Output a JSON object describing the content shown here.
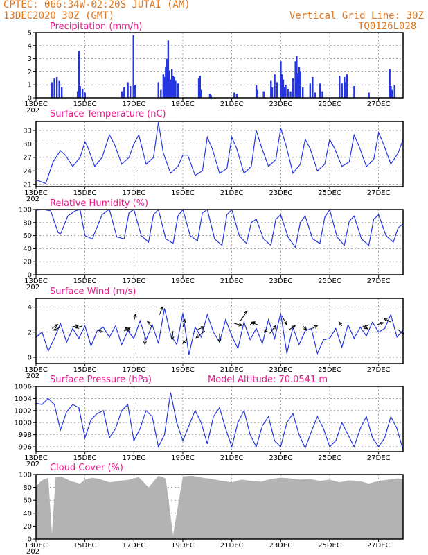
{
  "header": {
    "left_line1": "CPTEC:    066:34W-02:20S   JUTAI (AM)",
    "left_line2": "13DEC2020 30Z (GMT)",
    "right_line1": "Vertical Grid Line: 30Z",
    "right_line2": "TQ0126L028"
  },
  "colors": {
    "header": "#e0761c",
    "panel_title": "#e8178a",
    "series": "#2535e0",
    "bars": "#2535e0",
    "cloud": "#b3b3b3",
    "arrows": "#000000"
  },
  "x_axis": {
    "unit": "days since 13DEC 00Z",
    "range": [
      0,
      15
    ],
    "ticks": [
      "13DEC",
      "15DEC",
      "17DEC",
      "19DEC",
      "21DEC",
      "23DEC",
      "25DEC",
      "27DEC"
    ],
    "tick_days": [
      0,
      2,
      4,
      6,
      8,
      10,
      12,
      14
    ],
    "year_fragment": "202"
  },
  "chart_data": [
    {
      "id": "precip",
      "type": "bar",
      "title": "Precipitation (mm/h)",
      "ylim": [
        0,
        5
      ],
      "yticks": [
        0,
        1,
        2,
        3,
        4,
        5
      ],
      "x": [
        0.65,
        0.75,
        0.85,
        0.95,
        1.05,
        1.7,
        1.75,
        1.8,
        1.9,
        2.0,
        3.5,
        3.6,
        3.75,
        3.85,
        3.98,
        4.05,
        5.0,
        5.1,
        5.2,
        5.25,
        5.3,
        5.35,
        5.4,
        5.45,
        5.5,
        5.55,
        5.6,
        5.65,
        5.7,
        5.8,
        6.65,
        6.7,
        6.75,
        7.1,
        7.15,
        8.1,
        8.2,
        9.0,
        9.05,
        9.3,
        9.6,
        9.65,
        9.75,
        9.85,
        10.0,
        10.05,
        10.1,
        10.15,
        10.2,
        10.3,
        10.4,
        10.5,
        10.6,
        10.65,
        10.7,
        10.75,
        10.8,
        10.9,
        11.2,
        11.3,
        11.4,
        11.6,
        11.7,
        12.4,
        12.5,
        12.6,
        12.65,
        12.7,
        13.0,
        13.6,
        14.45,
        14.5,
        14.55,
        14.65
      ],
      "values": [
        1.2,
        1.5,
        1.6,
        1.3,
        0.8,
        0.5,
        3.6,
        0.9,
        0.7,
        0.4,
        0.5,
        0.8,
        1.2,
        0.9,
        4.8,
        1.0,
        1.2,
        0.6,
        1.8,
        1.6,
        2.4,
        3.0,
        4.4,
        2.1,
        1.4,
        2.2,
        1.7,
        1.6,
        1.3,
        1.1,
        1.5,
        1.7,
        0.6,
        0.3,
        0.2,
        0.4,
        0.3,
        1.0,
        0.6,
        0.5,
        1.3,
        0.8,
        1.8,
        1.2,
        2.8,
        1.8,
        1.4,
        0.8,
        1.0,
        0.7,
        0.5,
        1.5,
        2.8,
        3.2,
        1.9,
        2.4,
        2.0,
        0.8,
        1.1,
        1.6,
        0.4,
        1.1,
        0.5,
        1.7,
        1.1,
        1.6,
        1.2,
        1.8,
        0.9,
        0.4,
        2.2,
        0.9,
        0.6,
        1.0
      ]
    },
    {
      "id": "temp",
      "type": "line",
      "title": "Surface Temperature (nC)",
      "ylim": [
        20.5,
        35
      ],
      "yticks": [
        21,
        24,
        27,
        30,
        33
      ],
      "x": [
        0,
        0.4,
        0.7,
        1.0,
        1.2,
        1.5,
        1.8,
        2.0,
        2.1,
        2.4,
        2.7,
        3.0,
        3.2,
        3.5,
        3.8,
        4.0,
        4.2,
        4.5,
        4.8,
        5.0,
        5.2,
        5.5,
        5.8,
        6.0,
        6.2,
        6.5,
        6.8,
        7.0,
        7.2,
        7.5,
        7.8,
        8.0,
        8.2,
        8.5,
        8.8,
        9.0,
        9.2,
        9.5,
        9.8,
        10.0,
        10.2,
        10.5,
        10.8,
        11.0,
        11.2,
        11.5,
        11.8,
        12.0,
        12.2,
        12.5,
        12.8,
        13.0,
        13.2,
        13.5,
        13.8,
        14.0,
        14.2,
        14.5,
        14.8,
        15.0
      ],
      "values": [
        22,
        21.2,
        26,
        28.5,
        27.5,
        25,
        27,
        30.5,
        29.5,
        25,
        27,
        32,
        30,
        25.5,
        27,
        30,
        32,
        25.5,
        27,
        34.8,
        28,
        23.5,
        25,
        27.5,
        27.5,
        23,
        24,
        31.5,
        29,
        23.5,
        24.5,
        31.5,
        29,
        23.5,
        25,
        33,
        29.5,
        25,
        26.5,
        33.5,
        30,
        23.5,
        25.5,
        31,
        29,
        24,
        25.5,
        31,
        29,
        25,
        26,
        32,
        29.5,
        25,
        26.5,
        32.5,
        30,
        25.5,
        28,
        31
      ]
    },
    {
      "id": "rh",
      "type": "line",
      "title": "Relative Humidity (%)",
      "ylim": [
        0,
        100
      ],
      "yticks": [
        0,
        20,
        40,
        60,
        80,
        100
      ],
      "x": [
        0,
        0.3,
        0.6,
        0.9,
        1.0,
        1.3,
        1.6,
        1.8,
        2.0,
        2.3,
        2.7,
        2.9,
        3.0,
        3.3,
        3.6,
        3.8,
        4.0,
        4.3,
        4.6,
        4.8,
        5.0,
        5.3,
        5.6,
        5.8,
        6.0,
        6.3,
        6.6,
        6.8,
        7.0,
        7.3,
        7.6,
        7.8,
        8.0,
        8.3,
        8.6,
        8.8,
        9.0,
        9.3,
        9.6,
        9.8,
        10.0,
        10.3,
        10.6,
        10.8,
        11.0,
        11.3,
        11.6,
        11.8,
        12.0,
        12.3,
        12.6,
        12.8,
        13.0,
        13.3,
        13.6,
        13.8,
        14.0,
        14.3,
        14.6,
        14.8,
        15.0
      ],
      "values": [
        99,
        100,
        98,
        65,
        62,
        90,
        98,
        100,
        60,
        55,
        92,
        98,
        100,
        58,
        55,
        95,
        100,
        60,
        50,
        92,
        100,
        55,
        48,
        90,
        100,
        60,
        52,
        95,
        100,
        55,
        45,
        92,
        100,
        60,
        48,
        80,
        85,
        55,
        45,
        85,
        92,
        58,
        42,
        80,
        90,
        55,
        48,
        88,
        100,
        58,
        45,
        82,
        90,
        55,
        45,
        85,
        92,
        60,
        50,
        72,
        78
      ]
    },
    {
      "id": "wind",
      "type": "line",
      "title": "Surface Wind (m/s)",
      "ylim": [
        -0.5,
        4.7
      ],
      "yticks": [
        0,
        2,
        4
      ],
      "x": [
        0,
        0.25,
        0.5,
        0.75,
        1.0,
        1.25,
        1.5,
        1.75,
        2.0,
        2.25,
        2.5,
        2.75,
        3.0,
        3.25,
        3.5,
        3.75,
        4.0,
        4.25,
        4.5,
        4.75,
        5.0,
        5.25,
        5.5,
        5.75,
        6.0,
        6.25,
        6.5,
        6.75,
        7.0,
        7.25,
        7.5,
        7.75,
        8.0,
        8.25,
        8.5,
        8.75,
        9.0,
        9.25,
        9.5,
        9.75,
        10.0,
        10.25,
        10.5,
        10.75,
        11.0,
        11.25,
        11.5,
        11.75,
        12.0,
        12.25,
        12.5,
        12.75,
        13.0,
        13.25,
        13.5,
        13.75,
        14.0,
        14.25,
        14.5,
        14.75,
        15.0
      ],
      "values": [
        1.6,
        2.0,
        0.5,
        1.5,
        2.7,
        1.2,
        2.3,
        1.5,
        2.5,
        0.9,
        2.1,
        2.4,
        1.6,
        2.5,
        1.0,
        2.1,
        1.5,
        2.9,
        1.4,
        2.6,
        1.1,
        3.9,
        1.8,
        1.0,
        3.5,
        0.2,
        2.4,
        1.6,
        3.4,
        2.0,
        1.2,
        3.0,
        1.7,
        0.7,
        2.8,
        1.4,
        2.3,
        1.1,
        3.0,
        1.5,
        3.5,
        0.3,
        2.4,
        1.0,
        2.1,
        2.3,
        0.3,
        1.4,
        1.5,
        2.3,
        0.8,
        2.6,
        1.5,
        2.4,
        1.7,
        2.8,
        2.0,
        2.3,
        3.4,
        1.6,
        2.2
      ],
      "arrows": [
        {
          "x": 0.65,
          "y": 2.3,
          "dx": 0.6,
          "dy": 0.4
        },
        {
          "x": 1.0,
          "y": 2.4,
          "dx": -0.7,
          "dy": -0.3
        },
        {
          "x": 1.45,
          "y": 2.4,
          "dx": 0.7,
          "dy": 0.2
        },
        {
          "x": 1.9,
          "y": 2.5,
          "dx": -0.7,
          "dy": -0.2
        },
        {
          "x": 2.8,
          "y": 2.0,
          "dx": -0.6,
          "dy": 0.2
        },
        {
          "x": 3.6,
          "y": 2.1,
          "dx": 0.6,
          "dy": 0.3
        },
        {
          "x": 3.85,
          "y": 2.0,
          "dx": -0.5,
          "dy": 0.5
        },
        {
          "x": 4.0,
          "y": 2.9,
          "dx": 0.2,
          "dy": 0.7
        },
        {
          "x": 4.45,
          "y": 1.8,
          "dx": 0.0,
          "dy": -1.0
        },
        {
          "x": 4.75,
          "y": 2.4,
          "dx": -0.5,
          "dy": 0.6
        },
        {
          "x": 5.05,
          "y": 3.4,
          "dx": 0.3,
          "dy": 0.8
        },
        {
          "x": 5.6,
          "y": 2.1,
          "dx": -0.1,
          "dy": -0.9
        },
        {
          "x": 6.0,
          "y": 2.4,
          "dx": 0.2,
          "dy": 0.8
        },
        {
          "x": 6.2,
          "y": 1.5,
          "dx": -0.5,
          "dy": -0.5
        },
        {
          "x": 6.6,
          "y": 2.2,
          "dx": 0.7,
          "dy": 0.3
        },
        {
          "x": 6.9,
          "y": 2.1,
          "dx": -0.9,
          "dy": -0.7
        },
        {
          "x": 7.5,
          "y": 1.9,
          "dx": 0.0,
          "dy": -0.9
        },
        {
          "x": 8.1,
          "y": 2.7,
          "dx": 0.8,
          "dy": -0.2
        },
        {
          "x": 8.35,
          "y": 2.9,
          "dx": 0.7,
          "dy": 1.0
        },
        {
          "x": 8.75,
          "y": 2.6,
          "dx": 0.5,
          "dy": 0.3
        },
        {
          "x": 9.05,
          "y": 2.6,
          "dx": -0.6,
          "dy": 0.2
        },
        {
          "x": 9.45,
          "y": 2.3,
          "dx": -0.3,
          "dy": -0.4
        },
        {
          "x": 9.55,
          "y": 1.9,
          "dx": 0.6,
          "dy": 0.8
        },
        {
          "x": 10.05,
          "y": 3.3,
          "dx": 0.5,
          "dy": -0.9
        },
        {
          "x": 10.35,
          "y": 2.2,
          "dx": 0.6,
          "dy": 0.4
        },
        {
          "x": 10.9,
          "y": 2.5,
          "dx": 0.4,
          "dy": -0.4
        },
        {
          "x": 11.3,
          "y": 2.3,
          "dx": 0.5,
          "dy": 0.3
        },
        {
          "x": 12.5,
          "y": 2.5,
          "dx": -0.3,
          "dy": 0.4
        },
        {
          "x": 13.35,
          "y": 2.5,
          "dx": 0.5,
          "dy": -0.3
        },
        {
          "x": 13.6,
          "y": 2.6,
          "dx": -0.5,
          "dy": -0.3
        },
        {
          "x": 13.95,
          "y": 2.6,
          "dx": 0.6,
          "dy": 0.2
        },
        {
          "x": 14.5,
          "y": 2.8,
          "dx": -0.7,
          "dy": 0.4
        },
        {
          "x": 14.8,
          "y": 2.2,
          "dx": 0.6,
          "dy": -0.5
        }
      ]
    },
    {
      "id": "pressure",
      "type": "line",
      "title": "Surface Pressure (hPa)",
      "subtitle": "Model Altitude: 70.0541 m",
      "ylim": [
        995.2,
        1006
      ],
      "yticks": [
        996,
        998,
        1000,
        1002,
        1004,
        1006
      ],
      "x": [
        0,
        0.25,
        0.5,
        0.75,
        1.0,
        1.25,
        1.5,
        1.75,
        2.0,
        2.25,
        2.5,
        2.75,
        3.0,
        3.25,
        3.5,
        3.75,
        4.0,
        4.25,
        4.5,
        4.75,
        5.0,
        5.25,
        5.5,
        5.75,
        6.0,
        6.25,
        6.5,
        6.75,
        7.0,
        7.25,
        7.5,
        7.75,
        8.0,
        8.25,
        8.5,
        8.75,
        9.0,
        9.25,
        9.5,
        9.75,
        10.0,
        10.25,
        10.5,
        10.75,
        11.0,
        11.25,
        11.5,
        11.75,
        12.0,
        12.25,
        12.5,
        12.75,
        13.0,
        13.25,
        13.5,
        13.75,
        14.0,
        14.25,
        14.5,
        14.75,
        15.0
      ],
      "values": [
        1003.2,
        1003.0,
        1004.0,
        1003.0,
        998.8,
        1001.8,
        1003.0,
        1002.5,
        997.5,
        1000.5,
        1001.5,
        1002.0,
        997.5,
        999.0,
        1002.0,
        1003.0,
        997.0,
        999.0,
        1002.0,
        1001.0,
        996.0,
        998.0,
        1005.0,
        1000.0,
        997.0,
        999.5,
        1002.0,
        1000.0,
        996.5,
        1001.0,
        1002.5,
        999.0,
        996.0,
        1000.0,
        1002.0,
        998.0,
        996.0,
        999.5,
        1001.0,
        997.0,
        996.0,
        1000.0,
        1001.5,
        998.0,
        995.8,
        998.5,
        1001.0,
        999.0,
        996.0,
        997.0,
        1000.0,
        998.0,
        996.0,
        999.0,
        1001.0,
        997.5,
        996.0,
        997.5,
        1001.0,
        999.0,
        995.5
      ]
    },
    {
      "id": "cloud",
      "type": "area",
      "title": "Cloud Cover (%)",
      "ylim": [
        0,
        100
      ],
      "yticks": [
        0,
        20,
        40,
        60,
        80,
        100
      ],
      "x": [
        0,
        0.15,
        0.3,
        0.5,
        0.65,
        0.8,
        1.0,
        1.2,
        1.4,
        1.6,
        1.8,
        2.0,
        2.3,
        2.6,
        3.0,
        3.4,
        3.8,
        4.2,
        4.6,
        5.0,
        5.3,
        5.6,
        6.0,
        6.4,
        6.8,
        7.2,
        7.6,
        8.0,
        8.4,
        8.8,
        9.2,
        9.6,
        10.0,
        10.4,
        10.8,
        11.2,
        11.6,
        12.0,
        12.4,
        12.8,
        13.2,
        13.6,
        14.0,
        14.4,
        14.8,
        15.0
      ],
      "values": [
        82,
        88,
        92,
        95,
        8,
        96,
        97,
        94,
        90,
        88,
        86,
        92,
        95,
        93,
        88,
        90,
        92,
        96,
        80,
        98,
        94,
        6,
        97,
        98,
        95,
        93,
        90,
        88,
        92,
        90,
        89,
        93,
        95,
        94,
        92,
        93,
        90,
        92,
        88,
        91,
        90,
        86,
        90,
        92,
        94,
        93
      ]
    }
  ]
}
